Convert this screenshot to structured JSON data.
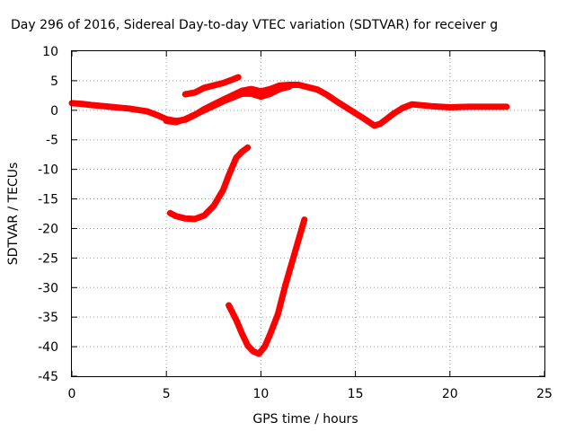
{
  "chart_data": {
    "type": "line",
    "title": "Day 296 of 2016, Sidereal Day-to-day VTEC variation (SDTVAR) for receiver g",
    "xlabel": "GPS time / hours",
    "ylabel": "SDTVAR / TECUs",
    "xlim": [
      0,
      25
    ],
    "ylim": [
      -45,
      10
    ],
    "xticks": [
      0,
      5,
      10,
      15,
      20,
      25
    ],
    "yticks": [
      10,
      5,
      0,
      -5,
      -10,
      -15,
      -20,
      -25,
      -30,
      -35,
      -40,
      -45
    ],
    "grid": true,
    "series_color": "#ff0000",
    "series": [
      {
        "name": "arc-main-baseline",
        "x": [
          0,
          0.5,
          1,
          2,
          3,
          4,
          4.5,
          5,
          5.5,
          6,
          6.5,
          7,
          8,
          9,
          9.5,
          10,
          10.5,
          11,
          11.5,
          12,
          13,
          13.5,
          14,
          15,
          15.5,
          16,
          16.3,
          16.6,
          17,
          17.5,
          18,
          19,
          20,
          21,
          22,
          23
        ],
        "y": [
          1.2,
          1.1,
          0.9,
          0.6,
          0.3,
          -0.2,
          -0.8,
          -1.5,
          -1.8,
          -1.6,
          -0.8,
          0.2,
          1.8,
          3.3,
          3.6,
          3.2,
          3.6,
          4.2,
          4.3,
          4.3,
          3.5,
          2.6,
          1.5,
          -0.5,
          -1.5,
          -2.6,
          -2.3,
          -1.6,
          -0.6,
          0.4,
          1.0,
          0.7,
          0.5,
          0.6,
          0.6,
          0.6
        ]
      },
      {
        "name": "arc-lower-branch",
        "x": [
          5,
          5.5,
          6,
          7,
          8,
          9,
          9.5,
          10,
          10.5,
          11,
          11.5
        ],
        "y": [
          -1.8,
          -2.0,
          -1.5,
          0.0,
          1.5,
          2.8,
          2.8,
          2.3,
          2.8,
          3.6,
          4.0
        ]
      },
      {
        "name": "arc-upper-short",
        "x": [
          6,
          6.5,
          7,
          7.5,
          8,
          8.5,
          8.8
        ],
        "y": [
          2.7,
          3.0,
          3.8,
          4.2,
          4.6,
          5.2,
          5.6
        ]
      },
      {
        "name": "arc-dip-20",
        "x": [
          5.2,
          5.5,
          6,
          6.5,
          7,
          7.5,
          8,
          8.3,
          8.7,
          9,
          9.3
        ],
        "y": [
          -17.4,
          -17.9,
          -18.3,
          -18.4,
          -17.8,
          -16.2,
          -13.5,
          -11.0,
          -8.0,
          -7.0,
          -6.3
        ]
      },
      {
        "name": "arc-dip-40",
        "x": [
          8.3,
          8.7,
          9,
          9.3,
          9.6,
          9.9,
          10.2,
          10.5,
          10.9,
          11.3,
          11.8,
          12.3
        ],
        "y": [
          -33.0,
          -35.5,
          -37.8,
          -39.8,
          -40.8,
          -41.2,
          -40.0,
          -37.8,
          -34.5,
          -29.5,
          -24.0,
          -18.5
        ]
      }
    ]
  }
}
